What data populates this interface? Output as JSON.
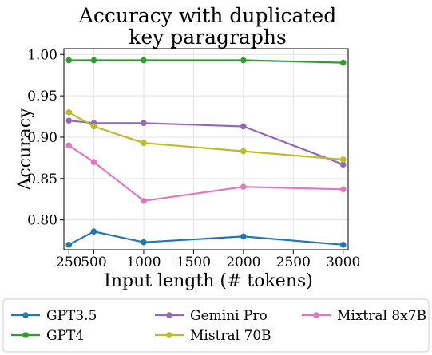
{
  "chart_data": {
    "type": "line",
    "title": [
      "Accuracy with duplicated",
      "key paragraphs"
    ],
    "xlabel": "Input length (# tokens)",
    "ylabel": "Accuracy",
    "x_ticks": [
      250,
      500,
      1000,
      1500,
      2000,
      2500,
      3000
    ],
    "y_ticks": [
      "0.80",
      "0.85",
      "0.90",
      "0.95",
      "1.00"
    ],
    "xlim": [
      200,
      3050
    ],
    "ylim": [
      0.764,
      1.007
    ],
    "grid": true,
    "legend_position": "bottom",
    "x": [
      250,
      500,
      1000,
      2000,
      3000
    ],
    "series": [
      {
        "name": "GPT3.5",
        "color": "#1f77b4",
        "values": [
          0.77,
          0.786,
          0.773,
          0.78,
          0.77
        ]
      },
      {
        "name": "GPT4",
        "color": "#2ca02c",
        "values": [
          0.993,
          0.993,
          0.993,
          0.993,
          0.99
        ]
      },
      {
        "name": "Gemini Pro",
        "color": "#9467bd",
        "values": [
          0.92,
          0.917,
          0.917,
          0.913,
          0.867
        ]
      },
      {
        "name": "Mistral 70B",
        "color": "#bcbd22",
        "values": [
          0.93,
          0.913,
          0.893,
          0.883,
          0.873
        ]
      },
      {
        "name": "Mixtral 8x7B",
        "color": "#e377c2",
        "values": [
          0.89,
          0.87,
          0.823,
          0.84,
          0.837
        ]
      }
    ]
  }
}
